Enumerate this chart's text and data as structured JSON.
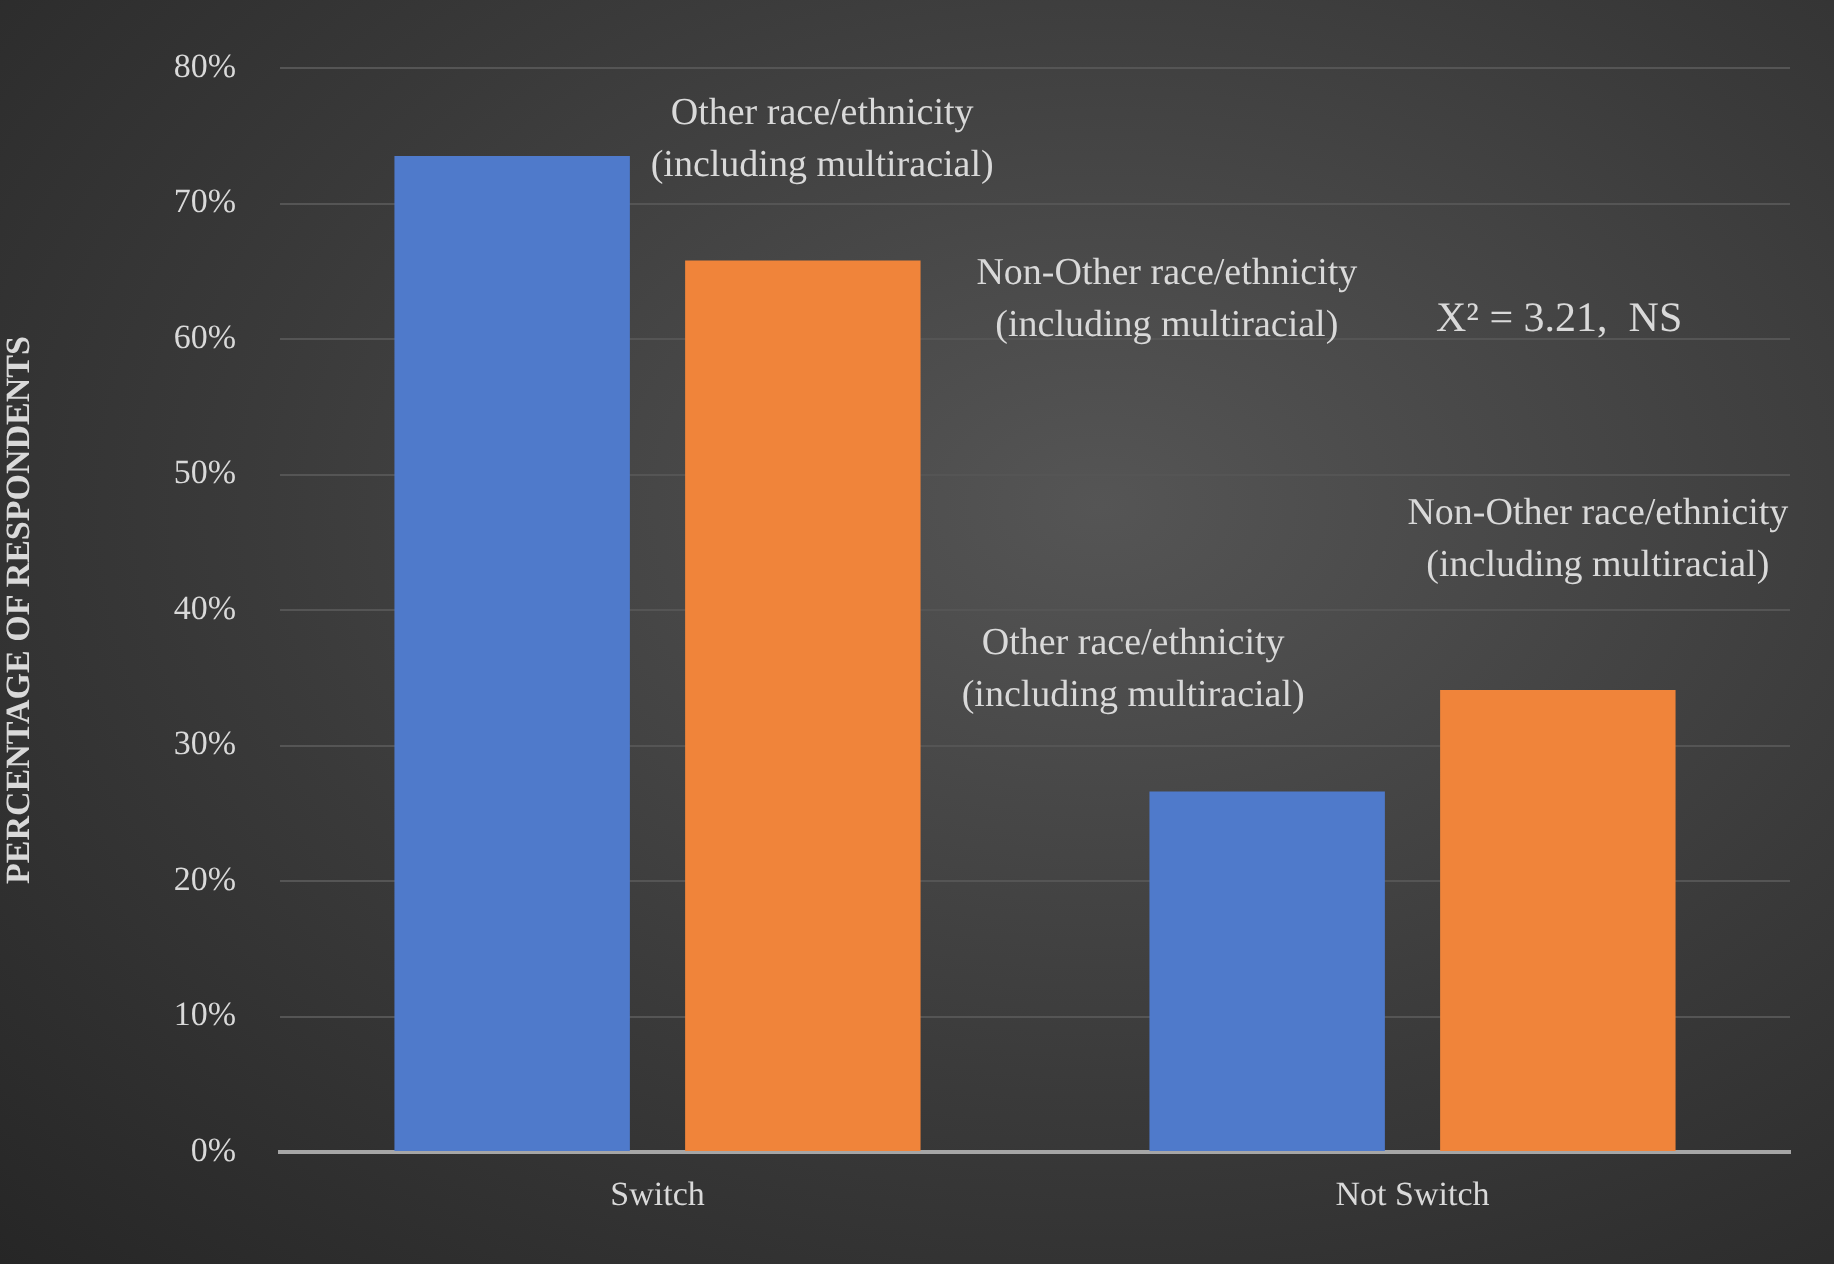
{
  "chart_data": {
    "type": "bar",
    "ylabel": "PERCENTAGE OF RESPONDENTS",
    "categories": [
      "Switch",
      "Not Switch"
    ],
    "series": [
      {
        "name": "Other race/ethnicity (including multiracial)",
        "color": "#4f7acb",
        "values": [
          73.5,
          26.6
        ]
      },
      {
        "name": "Non-Other race/ethnicity (including multiracial)",
        "color": "#f0843a",
        "values": [
          65.8,
          34.1
        ]
      }
    ],
    "ylim": [
      0,
      80
    ],
    "yticks": [
      {
        "value": 0,
        "label": "0%"
      },
      {
        "value": 10,
        "label": "10%"
      },
      {
        "value": 20,
        "label": "20%"
      },
      {
        "value": 30,
        "label": "30%"
      },
      {
        "value": 40,
        "label": "40%"
      },
      {
        "value": 50,
        "label": "50%"
      },
      {
        "value": 60,
        "label": "60%"
      },
      {
        "value": 70,
        "label": "70%"
      },
      {
        "value": 80,
        "label": "80%"
      }
    ],
    "grid": "y",
    "legend": false,
    "annotations": [
      "X² = 3.21,  NS"
    ]
  }
}
